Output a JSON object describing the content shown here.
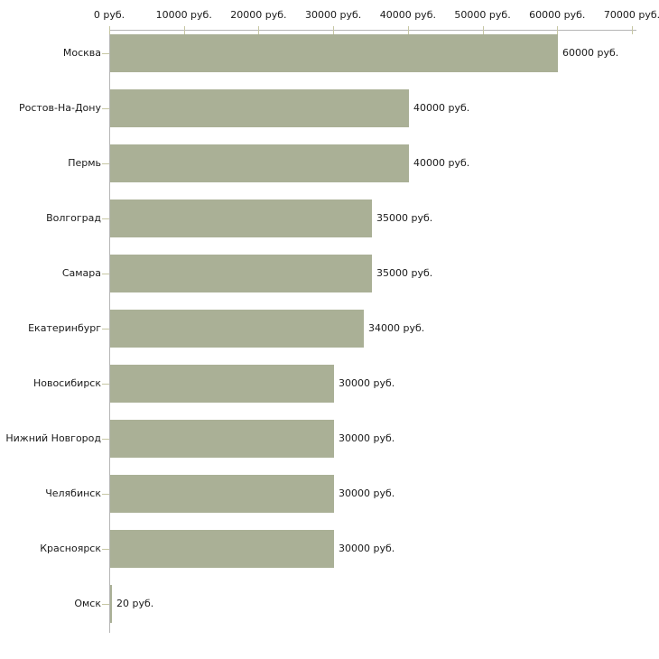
{
  "chart_data": {
    "type": "bar",
    "orientation": "horizontal",
    "title": "",
    "xlabel": "",
    "ylabel": "",
    "unit": "руб.",
    "xlim": [
      0,
      70000
    ],
    "grid": false,
    "legend": false,
    "categories": [
      "Москва",
      "Ростов-На-Дону",
      "Пермь",
      "Волгоград",
      "Самара",
      "Екатеринбург",
      "Новосибирск",
      "Нижний Новгород",
      "Челябинск",
      "Красноярск",
      "Омск"
    ],
    "values": [
      60000,
      40000,
      40000,
      35000,
      35000,
      34000,
      30000,
      30000,
      30000,
      30000,
      20
    ],
    "value_labels": [
      "60000 руб.",
      "40000 руб.",
      "40000 руб.",
      "35000 руб.",
      "35000 руб.",
      "34000 руб.",
      "30000 руб.",
      "30000 руб.",
      "30000 руб.",
      "30000 руб.",
      "20 руб."
    ],
    "x_ticks": [
      0,
      10000,
      20000,
      30000,
      40000,
      50000,
      60000,
      70000
    ],
    "x_tick_labels": [
      "0 руб.",
      "10000 руб.",
      "20000 руб.",
      "30000 руб.",
      "40000 руб.",
      "50000 руб.",
      "60000 руб.",
      "70000 руб."
    ],
    "colors": {
      "bar": "#aab096",
      "axis": "#b6b6b6",
      "tick": "#c6c6a3",
      "text": "#1a1a1a",
      "background": "#ffffff"
    }
  }
}
